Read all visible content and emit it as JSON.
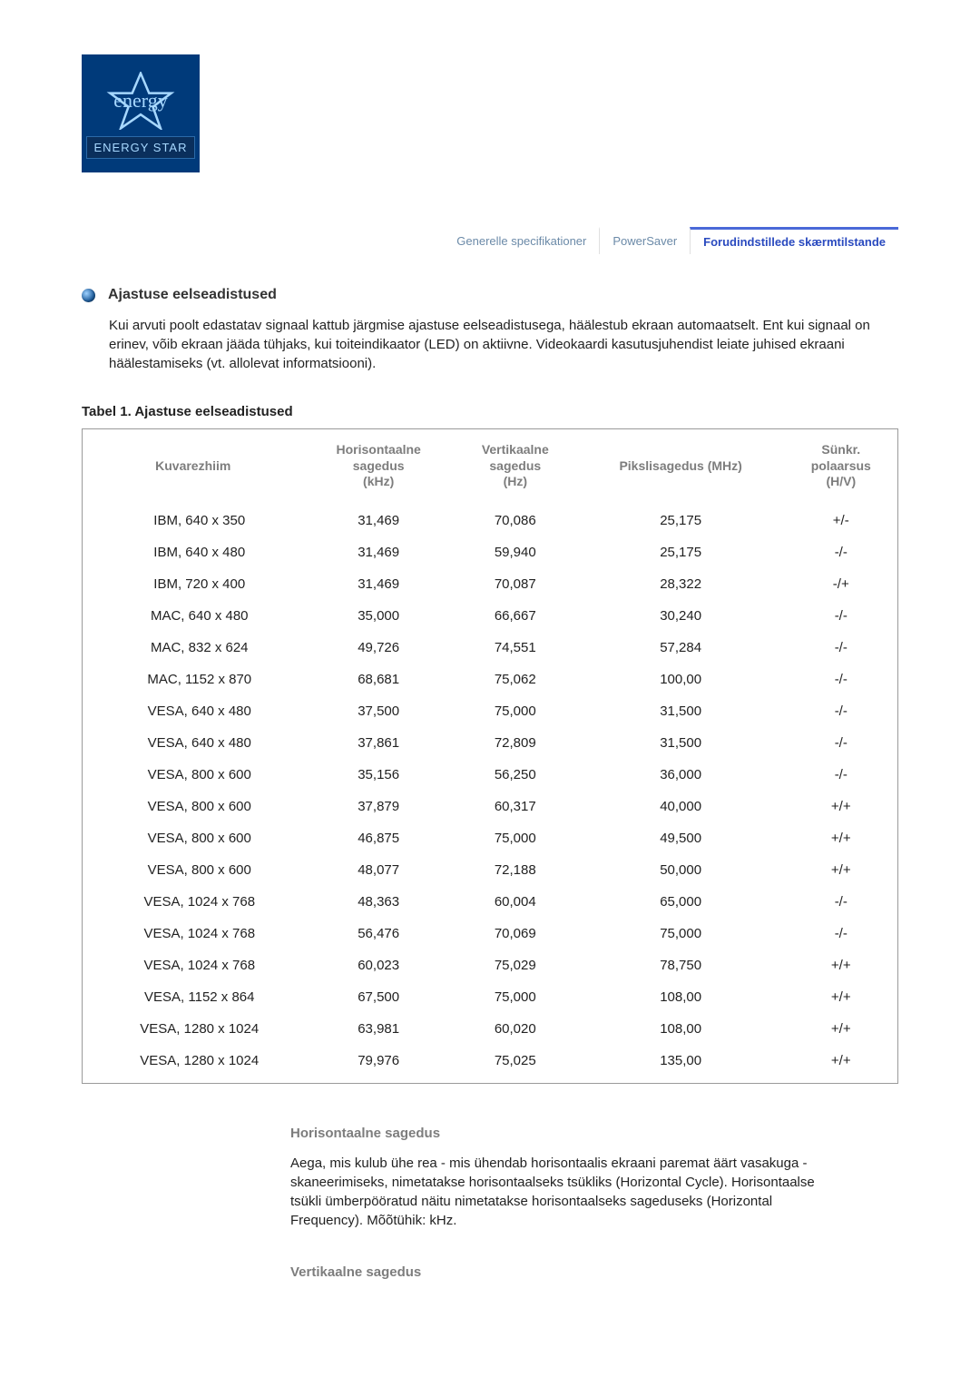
{
  "logo": {
    "script": "energy",
    "label": "ENERGY STAR",
    "star_stroke": "#a7d8ff",
    "bg": "#003a7a"
  },
  "tabs": [
    {
      "label": "Generelle specifikationer",
      "active": false
    },
    {
      "label": "PowerSaver",
      "active": false
    },
    {
      "label": "Forudindstillede skærmtilstande",
      "active": true
    }
  ],
  "section": {
    "title": "Ajastuse eelseadistused",
    "intro": "Kui arvuti poolt edastatav signaal kattub järgmise ajastuse eelseadistusega, häälestub ekraan automaatselt. Ent kui signaal on erinev, võib ekraan jääda tühjaks, kui toiteindikaator (LED) on aktiivne. Videokaardi kasutusjuhendist leiate juhised ekraani häälestamiseks (vt. allolevat informatsiooni)."
  },
  "table": {
    "caption": "Tabel 1. Ajastuse eelseadistused",
    "headers": {
      "mode": "Kuvarezhiim",
      "hfreq": "Horisontaalne sagedus (kHz)",
      "vfreq": "Vertikaalne sagedus (Hz)",
      "pclk": "Pikslisagedus (MHz)",
      "pol": "Sünkr. polaarsus (H/V)"
    },
    "rows": [
      {
        "mode": "IBM, 640 x 350",
        "h": "31,469",
        "v": "70,086",
        "p": "25,175",
        "pol": "+/-"
      },
      {
        "mode": "IBM, 640 x 480",
        "h": "31,469",
        "v": "59,940",
        "p": "25,175",
        "pol": "-/-"
      },
      {
        "mode": "IBM, 720 x 400",
        "h": "31,469",
        "v": "70,087",
        "p": "28,322",
        "pol": "-/+"
      },
      {
        "mode": "MAC, 640 x 480",
        "h": "35,000",
        "v": "66,667",
        "p": "30,240",
        "pol": "-/-"
      },
      {
        "mode": "MAC, 832 x 624",
        "h": "49,726",
        "v": "74,551",
        "p": "57,284",
        "pol": "-/-"
      },
      {
        "mode": "MAC, 1152 x 870",
        "h": "68,681",
        "v": "75,062",
        "p": "100,00",
        "pol": "-/-"
      },
      {
        "mode": "VESA, 640 x 480",
        "h": "37,500",
        "v": "75,000",
        "p": "31,500",
        "pol": "-/-"
      },
      {
        "mode": "VESA, 640 x 480",
        "h": "37,861",
        "v": "72,809",
        "p": "31,500",
        "pol": "-/-"
      },
      {
        "mode": "VESA, 800 x 600",
        "h": "35,156",
        "v": "56,250",
        "p": "36,000",
        "pol": "-/-"
      },
      {
        "mode": "VESA, 800 x 600",
        "h": "37,879",
        "v": "60,317",
        "p": "40,000",
        "pol": "+/+"
      },
      {
        "mode": "VESA, 800 x 600",
        "h": "46,875",
        "v": "75,000",
        "p": "49,500",
        "pol": "+/+"
      },
      {
        "mode": "VESA, 800 x 600",
        "h": "48,077",
        "v": "72,188",
        "p": "50,000",
        "pol": "+/+"
      },
      {
        "mode": "VESA, 1024 x 768",
        "h": "48,363",
        "v": "60,004",
        "p": "65,000",
        "pol": "-/-"
      },
      {
        "mode": "VESA, 1024 x 768",
        "h": "56,476",
        "v": "70,069",
        "p": "75,000",
        "pol": "-/-"
      },
      {
        "mode": "VESA, 1024 x 768",
        "h": "60,023",
        "v": "75,029",
        "p": "78,750",
        "pol": "+/+"
      },
      {
        "mode": "VESA, 1152 x 864",
        "h": "67,500",
        "v": "75,000",
        "p": "108,00",
        "pol": "+/+"
      },
      {
        "mode": "VESA, 1280 x 1024",
        "h": "63,981",
        "v": "60,020",
        "p": "108,00",
        "pol": "+/+"
      },
      {
        "mode": "VESA, 1280 x 1024",
        "h": "79,976",
        "v": "75,025",
        "p": "135,00",
        "pol": "+/+"
      }
    ]
  },
  "definitions": [
    {
      "title": "Horisontaalne sagedus",
      "body": "Aega, mis kulub ühe rea - mis ühendab horisontaalis ekraani paremat äärt vasakuga - skaneerimiseks, nimetatakse horisontaalseks tsükliks (Horizontal Cycle). Horisontaalse tsükli ümberpööratud näitu nimetatakse horisontaalseks sageduseks (Horizontal Frequency). Mõõtühik: kHz."
    },
    {
      "title": "Vertikaalne sagedus",
      "body": ""
    }
  ]
}
